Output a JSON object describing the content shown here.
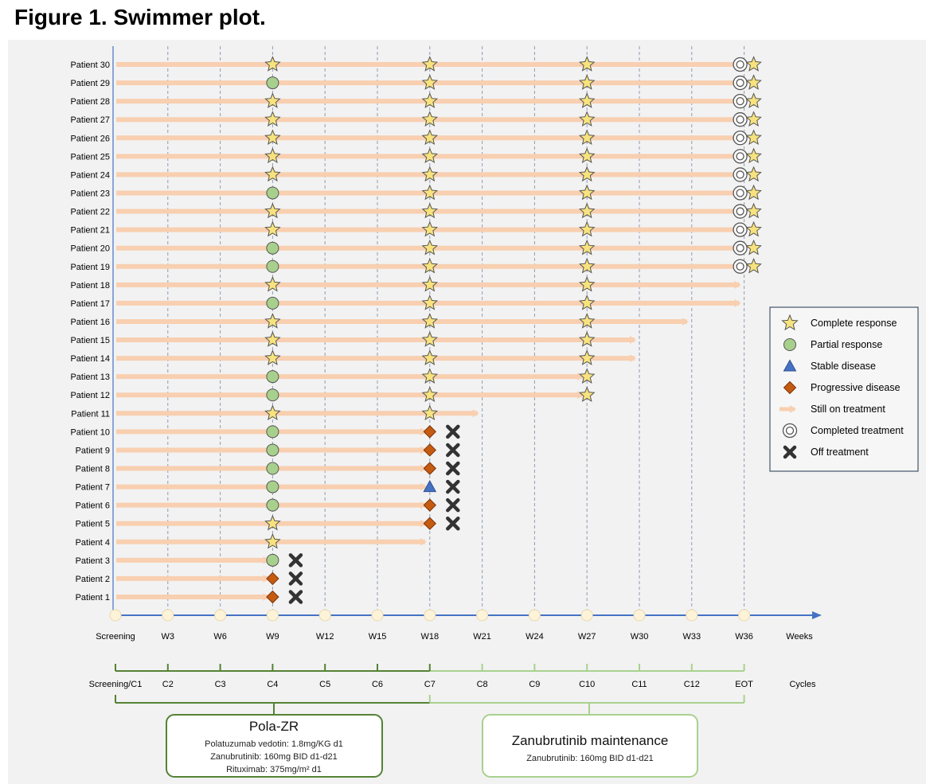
{
  "figure_title": "Figure 1. Swimmer plot.",
  "chart_data": {
    "type": "swimmer",
    "x_unit_label": "Weeks",
    "cycle_unit_label": "Cycles",
    "week_ticks": [
      "Screening",
      "W3",
      "W6",
      "W9",
      "W12",
      "W15",
      "W18",
      "W21",
      "W24",
      "W27",
      "W30",
      "W33",
      "W36"
    ],
    "week_values": [
      0,
      3,
      6,
      9,
      12,
      15,
      18,
      21,
      24,
      27,
      30,
      33,
      36
    ],
    "cycle_ticks": [
      "Screening/C1",
      "C2",
      "C3",
      "C4",
      "C5",
      "C6",
      "C7",
      "C8",
      "C9",
      "C10",
      "C11",
      "C12",
      "EOT"
    ],
    "patients": [
      {
        "label": "Patient 1",
        "end_week": 9,
        "assessments": [
          {
            "week": 9,
            "response": "PD"
          }
        ],
        "off_treatment": true,
        "completed": false
      },
      {
        "label": "Patient 2",
        "end_week": 9,
        "assessments": [
          {
            "week": 9,
            "response": "PD"
          }
        ],
        "off_treatment": true,
        "completed": false
      },
      {
        "label": "Patient 3",
        "end_week": 9,
        "assessments": [
          {
            "week": 9,
            "response": "PR"
          }
        ],
        "off_treatment": true,
        "completed": false
      },
      {
        "label": "Patient 4",
        "end_week": 18,
        "assessments": [
          {
            "week": 9,
            "response": "CR"
          }
        ],
        "off_treatment": false,
        "completed": false
      },
      {
        "label": "Patient 5",
        "end_week": 18,
        "assessments": [
          {
            "week": 9,
            "response": "CR"
          },
          {
            "week": 18,
            "response": "PD"
          }
        ],
        "off_treatment": true,
        "completed": false
      },
      {
        "label": "Patient 6",
        "end_week": 18,
        "assessments": [
          {
            "week": 9,
            "response": "PR"
          },
          {
            "week": 18,
            "response": "PD"
          }
        ],
        "off_treatment": true,
        "completed": false
      },
      {
        "label": "Patient 7",
        "end_week": 18,
        "assessments": [
          {
            "week": 9,
            "response": "PR"
          },
          {
            "week": 18,
            "response": "SD"
          }
        ],
        "off_treatment": true,
        "completed": false
      },
      {
        "label": "Patient 8",
        "end_week": 18,
        "assessments": [
          {
            "week": 9,
            "response": "PR"
          },
          {
            "week": 18,
            "response": "PD"
          }
        ],
        "off_treatment": true,
        "completed": false
      },
      {
        "label": "Patient 9",
        "end_week": 18,
        "assessments": [
          {
            "week": 9,
            "response": "PR"
          },
          {
            "week": 18,
            "response": "PD"
          }
        ],
        "off_treatment": true,
        "completed": false
      },
      {
        "label": "Patient 10",
        "end_week": 18,
        "assessments": [
          {
            "week": 9,
            "response": "PR"
          },
          {
            "week": 18,
            "response": "PD"
          }
        ],
        "off_treatment": true,
        "completed": false
      },
      {
        "label": "Patient 11",
        "end_week": 21,
        "assessments": [
          {
            "week": 9,
            "response": "CR"
          },
          {
            "week": 18,
            "response": "CR"
          }
        ],
        "off_treatment": false,
        "completed": false
      },
      {
        "label": "Patient 12",
        "end_week": 27,
        "assessments": [
          {
            "week": 9,
            "response": "PR"
          },
          {
            "week": 18,
            "response": "CR"
          },
          {
            "week": 27,
            "response": "CR"
          }
        ],
        "off_treatment": false,
        "completed": false
      },
      {
        "label": "Patient 13",
        "end_week": 27,
        "assessments": [
          {
            "week": 9,
            "response": "PR"
          },
          {
            "week": 18,
            "response": "CR"
          },
          {
            "week": 27,
            "response": "CR"
          }
        ],
        "off_treatment": false,
        "completed": false
      },
      {
        "label": "Patient 14",
        "end_week": 30,
        "assessments": [
          {
            "week": 9,
            "response": "CR"
          },
          {
            "week": 18,
            "response": "CR"
          },
          {
            "week": 27,
            "response": "CR"
          }
        ],
        "off_treatment": false,
        "completed": false
      },
      {
        "label": "Patient 15",
        "end_week": 30,
        "assessments": [
          {
            "week": 9,
            "response": "CR"
          },
          {
            "week": 18,
            "response": "CR"
          },
          {
            "week": 27,
            "response": "CR"
          }
        ],
        "off_treatment": false,
        "completed": false
      },
      {
        "label": "Patient 16",
        "end_week": 33,
        "assessments": [
          {
            "week": 9,
            "response": "CR"
          },
          {
            "week": 18,
            "response": "CR"
          },
          {
            "week": 27,
            "response": "CR"
          }
        ],
        "off_treatment": false,
        "completed": false
      },
      {
        "label": "Patient 17",
        "end_week": 36,
        "assessments": [
          {
            "week": 9,
            "response": "PR"
          },
          {
            "week": 18,
            "response": "CR"
          },
          {
            "week": 27,
            "response": "CR"
          }
        ],
        "off_treatment": false,
        "completed": false
      },
      {
        "label": "Patient 18",
        "end_week": 36,
        "assessments": [
          {
            "week": 9,
            "response": "CR"
          },
          {
            "week": 18,
            "response": "CR"
          },
          {
            "week": 27,
            "response": "CR"
          }
        ],
        "off_treatment": false,
        "completed": false
      },
      {
        "label": "Patient 19",
        "end_week": 36,
        "assessments": [
          {
            "week": 9,
            "response": "PR"
          },
          {
            "week": 18,
            "response": "CR"
          },
          {
            "week": 27,
            "response": "CR"
          },
          {
            "week": 36,
            "response": "CR"
          }
        ],
        "off_treatment": false,
        "completed": true
      },
      {
        "label": "Patient 20",
        "end_week": 36,
        "assessments": [
          {
            "week": 9,
            "response": "PR"
          },
          {
            "week": 18,
            "response": "CR"
          },
          {
            "week": 27,
            "response": "CR"
          },
          {
            "week": 36,
            "response": "CR"
          }
        ],
        "off_treatment": false,
        "completed": true
      },
      {
        "label": "Patient 21",
        "end_week": 36,
        "assessments": [
          {
            "week": 9,
            "response": "CR"
          },
          {
            "week": 18,
            "response": "CR"
          },
          {
            "week": 27,
            "response": "CR"
          },
          {
            "week": 36,
            "response": "CR"
          }
        ],
        "off_treatment": false,
        "completed": true
      },
      {
        "label": "Patient 22",
        "end_week": 36,
        "assessments": [
          {
            "week": 9,
            "response": "CR"
          },
          {
            "week": 18,
            "response": "CR"
          },
          {
            "week": 27,
            "response": "CR"
          },
          {
            "week": 36,
            "response": "CR"
          }
        ],
        "off_treatment": false,
        "completed": true
      },
      {
        "label": "Patient 23",
        "end_week": 36,
        "assessments": [
          {
            "week": 9,
            "response": "PR"
          },
          {
            "week": 18,
            "response": "CR"
          },
          {
            "week": 27,
            "response": "CR"
          },
          {
            "week": 36,
            "response": "CR"
          }
        ],
        "off_treatment": false,
        "completed": true
      },
      {
        "label": "Patient 24",
        "end_week": 36,
        "assessments": [
          {
            "week": 9,
            "response": "CR"
          },
          {
            "week": 18,
            "response": "CR"
          },
          {
            "week": 27,
            "response": "CR"
          },
          {
            "week": 36,
            "response": "CR"
          }
        ],
        "off_treatment": false,
        "completed": true
      },
      {
        "label": "Patient 25",
        "end_week": 36,
        "assessments": [
          {
            "week": 9,
            "response": "CR"
          },
          {
            "week": 18,
            "response": "CR"
          },
          {
            "week": 27,
            "response": "CR"
          },
          {
            "week": 36,
            "response": "CR"
          }
        ],
        "off_treatment": false,
        "completed": true
      },
      {
        "label": "Patient 26",
        "end_week": 36,
        "assessments": [
          {
            "week": 9,
            "response": "CR"
          },
          {
            "week": 18,
            "response": "CR"
          },
          {
            "week": 27,
            "response": "CR"
          },
          {
            "week": 36,
            "response": "CR"
          }
        ],
        "off_treatment": false,
        "completed": true
      },
      {
        "label": "Patient 27",
        "end_week": 36,
        "assessments": [
          {
            "week": 9,
            "response": "CR"
          },
          {
            "week": 18,
            "response": "CR"
          },
          {
            "week": 27,
            "response": "CR"
          },
          {
            "week": 36,
            "response": "CR"
          }
        ],
        "off_treatment": false,
        "completed": true
      },
      {
        "label": "Patient 28",
        "end_week": 36,
        "assessments": [
          {
            "week": 9,
            "response": "CR"
          },
          {
            "week": 18,
            "response": "CR"
          },
          {
            "week": 27,
            "response": "CR"
          },
          {
            "week": 36,
            "response": "CR"
          }
        ],
        "off_treatment": false,
        "completed": true
      },
      {
        "label": "Patient 29",
        "end_week": 36,
        "assessments": [
          {
            "week": 9,
            "response": "PR"
          },
          {
            "week": 18,
            "response": "CR"
          },
          {
            "week": 27,
            "response": "CR"
          },
          {
            "week": 36,
            "response": "CR"
          }
        ],
        "off_treatment": false,
        "completed": true
      },
      {
        "label": "Patient 30",
        "end_week": 36,
        "assessments": [
          {
            "week": 9,
            "response": "CR"
          },
          {
            "week": 18,
            "response": "CR"
          },
          {
            "week": 27,
            "response": "CR"
          },
          {
            "week": 36,
            "response": "CR"
          }
        ],
        "off_treatment": false,
        "completed": true
      }
    ],
    "legend": {
      "placement": "right",
      "items": [
        {
          "symbol": "star",
          "label": "Complete response"
        },
        {
          "symbol": "circle",
          "label": "Partial response"
        },
        {
          "symbol": "triangle",
          "label": "Stable disease"
        },
        {
          "symbol": "diamond",
          "label": "Progressive disease"
        },
        {
          "symbol": "arrow",
          "label": "Still on treatment"
        },
        {
          "symbol": "double-circle",
          "label": "Completed treatment"
        },
        {
          "symbol": "x",
          "label": "Off treatment"
        }
      ]
    },
    "phases": [
      {
        "title": "Pola-ZR",
        "from_cycle": "Screening/C1",
        "to_cycle": "C7",
        "lines": [
          "Polatuzumab vedotin: 1.8mg/KG d1",
          "Zanubrutinib: 160mg BID d1-d21",
          "Rituximab: 375mg/m² d1"
        ]
      },
      {
        "title": "Zanubrutinib maintenance",
        "from_cycle": "C7",
        "to_cycle": "EOT",
        "lines": [
          "Zanubrutinib: 160mg BID d1-d21"
        ]
      }
    ],
    "colors": {
      "panel_bg": "#f2f2f2",
      "bar": "#f8cfb0",
      "gridline": "#8f9bb5",
      "axis": "#4472c4",
      "axis_dot": "#fdf3d8",
      "star_fill": "#f7e27e",
      "circle_fill": "#a8d08d",
      "triangle_fill": "#4472c4",
      "diamond_fill": "#c55a11",
      "x_color": "#333333",
      "phase1": "#548235",
      "phase2": "#a9d18e"
    }
  }
}
